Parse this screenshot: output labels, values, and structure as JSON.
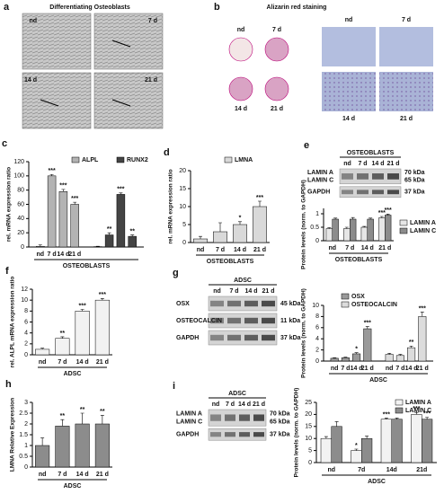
{
  "panels": {
    "a": {
      "letter": "a",
      "title": "Differentiating Osteoblasts",
      "tiles": [
        "nd",
        "7 d",
        "14 d",
        "21 d"
      ]
    },
    "b": {
      "letter": "b",
      "title": "Alizarin red staining",
      "left": [
        "nd",
        "7 d",
        "14 d",
        "21 d"
      ],
      "right": [
        "nd",
        "7 d",
        "14 d",
        "21 d"
      ]
    },
    "e": {
      "letter": "e",
      "header": "OSTEOBLASTS",
      "lanes": [
        "nd",
        "7 d",
        "14 d",
        "21 d"
      ],
      "rows": [
        {
          "labels": [
            "LAMIN A",
            "LAMIN C"
          ],
          "sizes": [
            "70 kDa",
            "65 kDa"
          ]
        },
        {
          "labels": [
            "GAPDH"
          ],
          "sizes": [
            "37 kDa"
          ]
        }
      ]
    },
    "g": {
      "letter": "g",
      "header": "ADSC",
      "lanes": [
        "nd",
        "7 d",
        "14 d",
        "21 d"
      ],
      "rows": [
        {
          "labels": [
            "OSX"
          ],
          "sizes": [
            "45 kDa"
          ]
        },
        {
          "labels": [
            "OSTEOCALCIN"
          ],
          "sizes": [
            "11 kDa"
          ]
        },
        {
          "labels": [
            "GAPDH"
          ],
          "sizes": [
            "37 kDa"
          ]
        }
      ]
    },
    "i": {
      "letter": "i",
      "header": "ADSC",
      "lanes": [
        "nd",
        "7 d",
        "14 d",
        "21 d"
      ],
      "rows": [
        {
          "labels": [
            "LAMIN A",
            "LAMIN C"
          ],
          "sizes": [
            "70 kDa",
            "65 kDa"
          ]
        },
        {
          "labels": [
            "GAPDH"
          ],
          "sizes": [
            "37 kDa"
          ]
        }
      ]
    }
  },
  "chart_data": [
    {
      "type": "bar",
      "letter": "c",
      "ylabel": "rel. mRNA expression ratio",
      "xlabel": "OSTEOBLASTS",
      "categories": [
        "nd",
        "7 d",
        "14 d",
        "21 d"
      ],
      "ylim": [
        0,
        120
      ],
      "yticks": [
        0,
        20,
        40,
        60,
        80,
        100,
        120
      ],
      "series": [
        {
          "name": "ALPL",
          "color": "#b3b3b3",
          "values": [
            1,
            100,
            78,
            60
          ],
          "errors": [
            2,
            2,
            3,
            3
          ],
          "stars": [
            null,
            "***",
            "***",
            "***"
          ]
        },
        {
          "name": "RUNX2",
          "color": "#444444",
          "values": [
            0.5,
            17,
            74,
            15
          ],
          "errors": [
            0.5,
            3,
            2,
            2
          ],
          "stars": [
            null,
            "**",
            "***",
            "**"
          ]
        }
      ]
    },
    {
      "type": "bar",
      "letter": "d",
      "ylabel": "rel. mRNA expression ratio",
      "xlabel": "OSTEOBLASTS",
      "categories": [
        "nd",
        "7 d",
        "14 d",
        "21 d"
      ],
      "ylim": [
        0,
        20
      ],
      "yticks": [
        0,
        5,
        10,
        15,
        20
      ],
      "series": [
        {
          "name": "LMNA",
          "color": "#d9d9d9",
          "values": [
            1,
            3,
            5,
            10
          ],
          "errors": [
            0.7,
            2.5,
            0.8,
            1.5
          ],
          "stars": [
            null,
            null,
            "*",
            "***"
          ]
        }
      ]
    },
    {
      "type": "bar",
      "ylabel": "Protein levels (norm. to GAPDH)",
      "xlabel": "OSTEOBLASTS",
      "categories": [
        "nd",
        "7 d",
        "14 d",
        "21 d"
      ],
      "ylim": [
        0,
        1.2
      ],
      "yticks": [
        0,
        0.5,
        1
      ],
      "series": [
        {
          "name": "LAMIN A",
          "color": "#e6e6e6",
          "values": [
            0.45,
            0.45,
            0.5,
            0.85
          ],
          "errors": [
            0.03,
            0.05,
            0.03,
            0.05
          ],
          "stars": [
            null,
            null,
            null,
            "***"
          ]
        },
        {
          "name": "LAMIN C",
          "color": "#8c8c8c",
          "values": [
            0.8,
            0.8,
            0.8,
            0.95
          ],
          "errors": [
            0.04,
            0.06,
            0.04,
            0.04
          ],
          "stars": [
            null,
            null,
            null,
            "***"
          ]
        }
      ]
    },
    {
      "type": "bar",
      "letter": "f",
      "ylabel": "rel. ALPL mRNA expression ratio",
      "xlabel": "ADSC",
      "categories": [
        "nd",
        "7 d",
        "14 d",
        "21 d"
      ],
      "ylim": [
        0,
        12
      ],
      "yticks": [
        0,
        2,
        4,
        6,
        8,
        10,
        12
      ],
      "series": [
        {
          "name": "ALPL",
          "color": "#f2f2f2",
          "values": [
            1,
            3,
            8,
            10
          ],
          "errors": [
            0.2,
            0.3,
            0.3,
            0.3
          ],
          "stars": [
            null,
            "**",
            "***",
            "***"
          ]
        }
      ]
    },
    {
      "type": "bar",
      "ylabel": "Protein levels (norm. to GAPDH)",
      "xlabel": "ADSC",
      "categories": [
        "nd",
        "7 d",
        "14 d",
        "21 d"
      ],
      "ylim": [
        0,
        10
      ],
      "yticks": [
        0,
        2,
        4,
        6,
        8,
        10
      ],
      "series": [
        {
          "name": "OSX",
          "color": "#9a9a9a",
          "values": [
            0.5,
            0.6,
            1.3,
            5.8
          ],
          "errors": [
            0.1,
            0.1,
            0.2,
            0.4
          ],
          "stars": [
            null,
            null,
            "*",
            "***"
          ]
        },
        {
          "name": "OSTEOCALCIN",
          "color": "#dcdcdc",
          "values": [
            1.2,
            1,
            2.4,
            8
          ],
          "errors": [
            0.2,
            0.2,
            0.3,
            0.8
          ],
          "stars": [
            null,
            null,
            "**",
            "***"
          ]
        }
      ]
    },
    {
      "type": "bar",
      "letter": "h",
      "ylabel": "LMNA Relative Expression",
      "xlabel": "ADSC",
      "categories": [
        "nd",
        "7 d",
        "14 d",
        "21 d"
      ],
      "ylim": [
        0,
        3
      ],
      "yticks": [
        0,
        0.5,
        1,
        1.5,
        2,
        2.5,
        3
      ],
      "series": [
        {
          "name": "LMNA",
          "color": "#8c8c8c",
          "values": [
            1,
            1.9,
            2,
            2
          ],
          "errors": [
            0.35,
            0.3,
            0.5,
            0.4
          ],
          "stars": [
            null,
            "**",
            "**",
            "**"
          ]
        }
      ]
    },
    {
      "type": "bar",
      "xlabel": "ADSC",
      "ylabel": "Protein levels (norm. to GAPDH)",
      "categories": [
        "nd",
        "7d",
        "14d",
        "21d"
      ],
      "ylim": [
        0,
        25
      ],
      "yticks": [
        0,
        5,
        10,
        15,
        20,
        25
      ],
      "series": [
        {
          "name": "LAMIN A",
          "color": "#f2f2f2",
          "values": [
            10,
            5,
            18,
            20
          ],
          "errors": [
            0.8,
            0.6,
            0.5,
            0.8
          ],
          "stars": [
            null,
            "*",
            "***",
            "***"
          ]
        },
        {
          "name": "LAMIN C",
          "color": "#8c8c8c",
          "values": [
            15,
            10,
            18,
            18
          ],
          "errors": [
            2,
            1,
            0.5,
            0.8
          ],
          "stars": [
            null,
            null,
            null,
            "***"
          ]
        }
      ]
    }
  ]
}
